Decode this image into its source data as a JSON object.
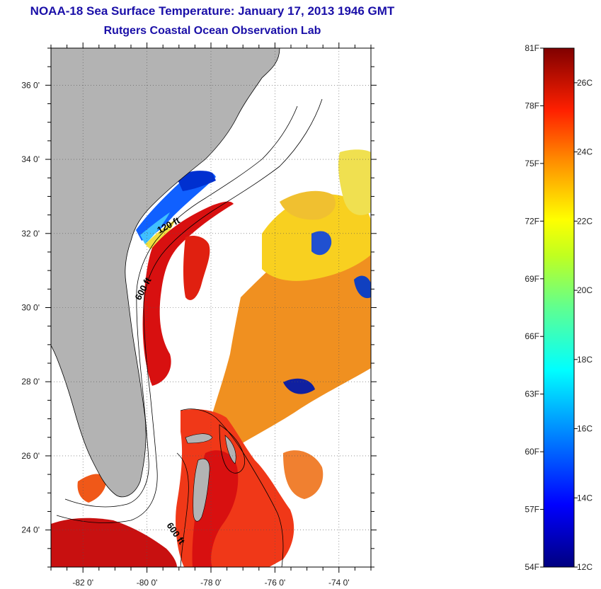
{
  "title": {
    "line1": "NOAA-18 Sea Surface Temperature:  January 17, 2013 1946 GMT",
    "line2": "Rutgers Coastal Ocean Observation Lab"
  },
  "map": {
    "lon_range": [
      -83,
      -73
    ],
    "lat_range": [
      23,
      37
    ],
    "lon_ticks": [
      {
        "lon": -82,
        "label": "-82 0'"
      },
      {
        "lon": -80,
        "label": "-80 0'"
      },
      {
        "lon": -78,
        "label": "-78 0'"
      },
      {
        "lon": -76,
        "label": "-76 0'"
      },
      {
        "lon": -74,
        "label": "-74 0'"
      }
    ],
    "lat_ticks": [
      {
        "lat": 24,
        "label": "24 0'"
      },
      {
        "lat": 26,
        "label": "26 0'"
      },
      {
        "lat": 28,
        "label": "28 0'"
      },
      {
        "lat": 30,
        "label": "30 0'"
      },
      {
        "lat": 32,
        "label": "32 0'"
      },
      {
        "lat": 34,
        "label": "34 0'"
      },
      {
        "lat": 36,
        "label": "36 0'"
      }
    ],
    "isobath_labels": [
      "120 ft",
      "600 ft",
      "600 ft"
    ],
    "land_color": "#b3b3b3"
  },
  "colorbar": {
    "fahrenheit_labels": [
      "81F",
      "78F",
      "75F",
      "72F",
      "69F",
      "66F",
      "63F",
      "60F",
      "57F",
      "54F"
    ],
    "celsius_labels": [
      "26C",
      "24C",
      "22C",
      "20C",
      "18C",
      "16C",
      "14C",
      "12C"
    ],
    "range_c": [
      12,
      27
    ]
  }
}
